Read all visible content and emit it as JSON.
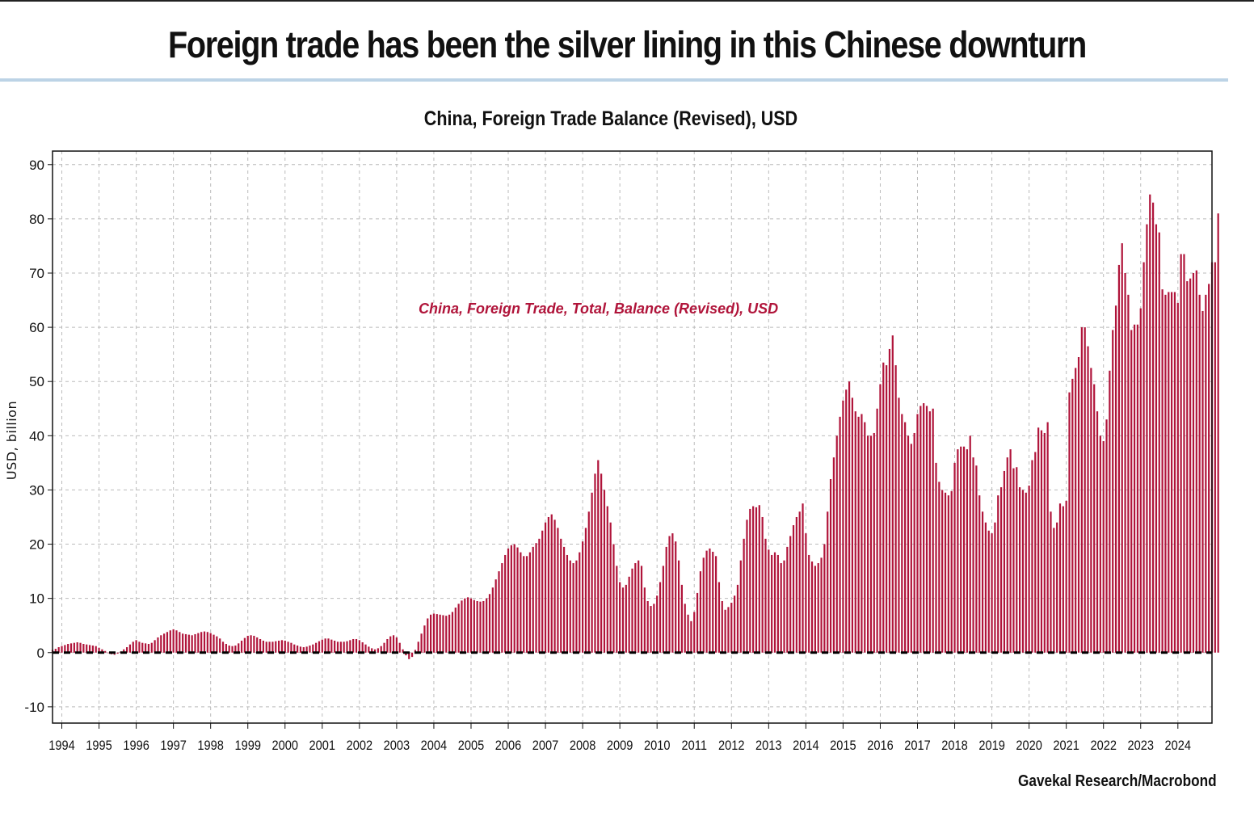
{
  "headline": "Foreign trade has been the silver lining in this Chinese downturn",
  "source": "Gavekal Research/Macrobond",
  "colors": {
    "bars": "#b0143a",
    "zero_line": "#000000",
    "grid": "#bbbbbb",
    "headline_rule": "#bcd3e6"
  },
  "chart_data": {
    "type": "bar",
    "title": "China, Foreign Trade Balance (Revised), USD",
    "ylabel": "USD, billion",
    "xlabel": "",
    "ylim": [
      -13,
      92.5
    ],
    "yticks": [
      -10,
      0,
      10,
      20,
      30,
      40,
      50,
      60,
      70,
      80,
      90
    ],
    "xlim": [
      "1993-10",
      "2024-12"
    ],
    "xticks": [
      "1994",
      "1995",
      "1996",
      "1997",
      "1998",
      "1999",
      "2000",
      "2001",
      "2002",
      "2003",
      "2004",
      "2005",
      "2006",
      "2007",
      "2008",
      "2009",
      "2010",
      "2011",
      "2012",
      "2013",
      "2014",
      "2015",
      "2016",
      "2017",
      "2018",
      "2019",
      "2020",
      "2021",
      "2022",
      "2023",
      "2024"
    ],
    "grid": true,
    "zero_line": "dashed",
    "series": [
      {
        "name": "China, Foreign Trade, Total, Balance (Revised), USD",
        "frequency": "monthly",
        "x_start": "1993-10",
        "values": [
          0.5,
          0.7,
          1.0,
          1.2,
          1.4,
          1.6,
          1.7,
          1.8,
          1.9,
          1.8,
          1.6,
          1.5,
          1.4,
          1.3,
          1.2,
          0.9,
          0.6,
          0.3,
          0.0,
          -0.3,
          -0.4,
          -0.2,
          0.2,
          0.6,
          1.0,
          1.5,
          2.0,
          2.3,
          2.0,
          1.8,
          1.7,
          1.6,
          1.8,
          2.3,
          2.8,
          3.2,
          3.5,
          3.8,
          4.1,
          4.3,
          4.1,
          3.8,
          3.5,
          3.4,
          3.3,
          3.2,
          3.4,
          3.6,
          3.8,
          3.9,
          3.8,
          3.6,
          3.3,
          3.0,
          2.6,
          2.0,
          1.6,
          1.3,
          1.2,
          1.3,
          1.7,
          2.2,
          2.7,
          3.1,
          3.2,
          3.1,
          2.8,
          2.5,
          2.2,
          2.0,
          2.0,
          2.0,
          2.1,
          2.2,
          2.3,
          2.2,
          2.0,
          1.8,
          1.5,
          1.3,
          1.1,
          1.0,
          1.1,
          1.3,
          1.5,
          1.8,
          2.1,
          2.4,
          2.6,
          2.6,
          2.4,
          2.2,
          2.0,
          2.0,
          2.0,
          2.1,
          2.3,
          2.5,
          2.5,
          2.3,
          1.9,
          1.5,
          1.1,
          0.8,
          0.6,
          0.8,
          1.2,
          1.8,
          2.5,
          3.0,
          3.2,
          2.8,
          1.8,
          0.6,
          -0.5,
          -1.2,
          -0.8,
          0.5,
          2.0,
          3.5,
          5.0,
          6.3,
          7.0,
          7.2,
          7.1,
          7.0,
          6.9,
          6.8,
          7.0,
          7.5,
          8.3,
          9.0,
          9.6,
          10.0,
          10.2,
          10.0,
          9.7,
          9.5,
          9.4,
          9.5,
          10.0,
          10.8,
          12.0,
          13.5,
          15.0,
          16.5,
          18.0,
          19.2,
          19.8,
          20.0,
          19.4,
          18.5,
          17.8,
          17.8,
          18.5,
          19.5,
          20.2,
          21.0,
          22.5,
          24.0,
          25.0,
          25.5,
          24.5,
          23.0,
          21.0,
          19.5,
          18.0,
          17.0,
          16.5,
          17.0,
          18.5,
          20.5,
          23.0,
          26.0,
          29.5,
          33.0,
          35.5,
          33.0,
          30.0,
          27.0,
          24.0,
          20.0,
          16.0,
          13.0,
          12.0,
          12.5,
          14.0,
          15.5,
          16.5,
          17.0,
          16.0,
          12.0,
          9.5,
          8.6,
          9.0,
          10.5,
          13.0,
          16.0,
          19.5,
          21.5,
          22.0,
          20.5,
          17.0,
          12.5,
          9.0,
          7.0,
          5.8,
          7.5,
          11.0,
          15.0,
          17.5,
          18.8,
          19.2,
          18.6,
          17.8,
          13.0,
          9.5,
          7.9,
          8.4,
          9.2,
          10.5,
          12.5,
          17.0,
          21.0,
          24.5,
          26.5,
          27.0,
          26.8,
          27.2,
          25.0,
          21.0,
          19.0,
          18.0,
          18.5,
          18.0,
          16.5,
          17.0,
          19.5,
          21.5,
          23.5,
          25.0,
          26.0,
          27.5,
          22.0,
          18.0,
          16.8,
          16.0,
          16.5,
          17.5,
          20.0,
          26.0,
          32.0,
          36.0,
          40.0,
          43.5,
          46.5,
          48.5,
          50.0,
          47.0,
          44.5,
          43.5,
          44.0,
          42.5,
          40.0,
          40.0,
          40.5,
          45.0,
          49.5,
          53.5,
          53.0,
          56.0,
          58.5,
          53.0,
          47.0,
          44.0,
          42.5,
          40.0,
          38.5,
          40.5,
          44.0,
          45.5,
          46.0,
          45.5,
          44.5,
          45.0,
          35.0,
          31.5,
          30.0,
          29.5,
          29.0,
          29.8,
          35.0,
          37.5,
          38.0,
          38.0,
          37.5,
          40.0,
          36.0,
          34.5,
          29.0,
          26.0,
          24.0,
          22.5,
          22.0,
          24.0,
          29.0,
          30.5,
          33.5,
          36.0,
          37.5,
          34.0,
          34.2,
          30.5,
          30.0,
          29.5,
          30.8,
          35.5,
          37.0,
          41.5,
          41.0,
          40.5,
          42.5,
          26.0,
          23.0,
          24.0,
          27.5,
          27.0,
          28.0,
          48.0,
          50.5,
          52.5,
          54.5,
          60.0,
          60.0,
          56.5,
          52.5,
          49.5,
          44.5,
          40.0,
          39.0,
          43.0,
          52.0,
          59.5,
          64.0,
          71.5,
          75.5,
          70.0,
          66.0,
          59.5,
          60.5,
          60.5,
          63.5,
          72.0,
          79.0,
          84.5,
          83.0,
          79.0,
          77.5,
          67.0,
          66.0,
          66.5,
          66.5,
          66.5,
          64.5,
          73.5,
          73.5,
          68.5,
          69.0,
          70.0,
          70.5,
          66.0,
          63.0,
          66.0,
          68.0,
          72.0,
          72.0,
          81.0
        ]
      }
    ]
  }
}
